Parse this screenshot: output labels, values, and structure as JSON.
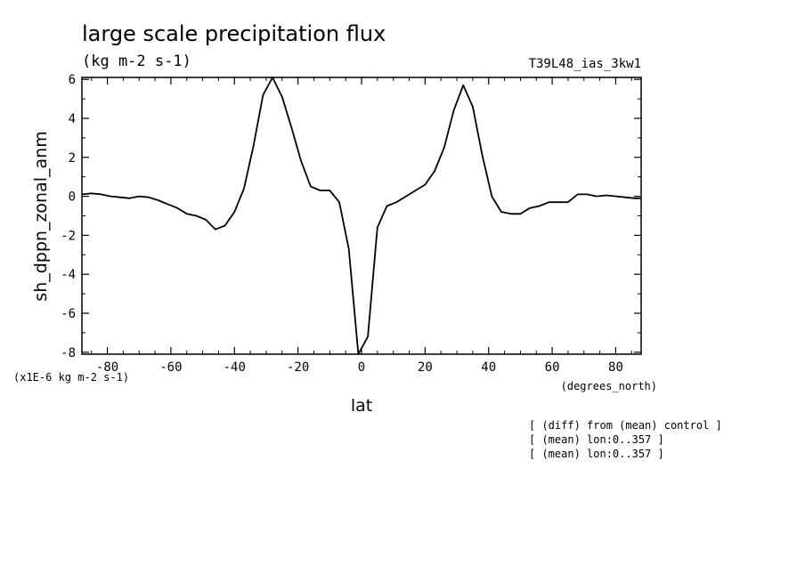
{
  "chart_data": {
    "type": "line",
    "title": "large scale precipitation flux",
    "units": "(kg m-2 s-1)",
    "run_id": "T39L48_ias_3kw1",
    "xlabel": "lat",
    "x_units": "(degrees_north)",
    "ylabel": "sh_dppn_zonal_anm",
    "y_scale_label": "(x1E-6 kg m-2 s-1)",
    "xlim": [
      -88,
      88
    ],
    "ylim": [
      -8.1,
      6.1
    ],
    "x_ticks": [
      -80,
      -60,
      -40,
      -20,
      0,
      20,
      40,
      60,
      80
    ],
    "x_tick_labels": [
      "-80",
      "-60",
      "-40",
      "-20",
      "0",
      "20",
      "40",
      "60",
      "80"
    ],
    "y_ticks": [
      -8,
      -6,
      -4,
      -2,
      0,
      2,
      4,
      6
    ],
    "y_tick_labels": [
      "-8",
      "-6",
      "-4",
      "-2",
      "0",
      "2",
      "4",
      "6"
    ],
    "grid": false,
    "notes": [
      "[ (diff) from (mean) control ]",
      "[ (mean) lon:0..357 ]",
      "[ (mean) lon:0..357 ]"
    ],
    "series": [
      {
        "x": [
          -88,
          -85,
          -82,
          -79,
          -76,
          -73,
          -70,
          -67,
          -64,
          -61,
          -58,
          -55,
          -52,
          -49,
          -46,
          -43,
          -40,
          -37,
          -34,
          -31,
          -28,
          -25,
          -22,
          -19,
          -16,
          -13,
          -10,
          -7,
          -4,
          -1,
          2,
          5,
          8,
          11,
          14,
          17,
          20,
          23,
          26,
          29,
          32,
          35,
          38,
          41,
          44,
          47,
          50,
          53,
          56,
          59,
          62,
          65,
          68,
          71,
          74,
          77,
          80,
          83,
          86,
          88
        ],
        "y": [
          0.1,
          0.15,
          0.1,
          0.0,
          -0.05,
          -0.1,
          0.0,
          -0.05,
          -0.2,
          -0.4,
          -0.6,
          -0.9,
          -1.0,
          -1.2,
          -1.7,
          -1.5,
          -0.8,
          0.4,
          2.6,
          5.2,
          6.1,
          5.1,
          3.5,
          1.8,
          0.5,
          0.3,
          0.3,
          -0.3,
          -2.7,
          -8.1,
          -7.2,
          -1.6,
          -0.5,
          -0.3,
          0.0,
          0.3,
          0.6,
          1.3,
          2.5,
          4.4,
          5.7,
          4.6,
          2.1,
          0.0,
          -0.8,
          -0.9,
          -0.9,
          -0.6,
          -0.5,
          -0.3,
          -0.3,
          -0.3,
          0.1,
          0.1,
          0.0,
          0.05,
          0.0,
          -0.05,
          -0.1,
          -0.1
        ]
      }
    ]
  }
}
